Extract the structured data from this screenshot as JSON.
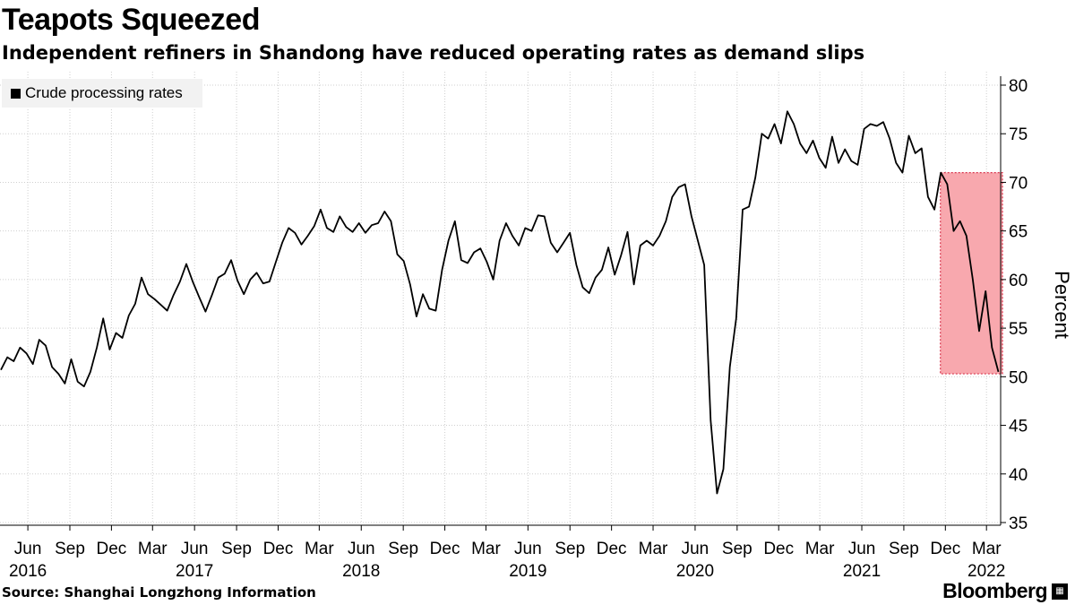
{
  "title": "Teapots Squeezed",
  "subtitle": "Independent refiners in Shandong have reduced operating rates as demand slips",
  "source": "Source: Shanghai Longzhong Information",
  "brand": "Bloomberg",
  "brand_badge": "▦",
  "chart_data": {
    "type": "line",
    "legend_position": "top-left",
    "grid": true,
    "ylabel": "Percent",
    "ylim": [
      35,
      80
    ],
    "yticks": [
      35,
      40,
      45,
      50,
      55,
      60,
      65,
      70,
      75,
      80
    ],
    "xlim": [
      "2016-04",
      "2022-04"
    ],
    "xtick_labels": [
      {
        "label": "Jun",
        "date": "2016-06"
      },
      {
        "label": "Sep",
        "date": "2016-09"
      },
      {
        "label": "Dec",
        "date": "2016-12"
      },
      {
        "label": "Mar",
        "date": "2017-03"
      },
      {
        "label": "Jun",
        "date": "2017-06"
      },
      {
        "label": "Sep",
        "date": "2017-09"
      },
      {
        "label": "Dec",
        "date": "2017-12"
      },
      {
        "label": "Mar",
        "date": "2018-03"
      },
      {
        "label": "Jun",
        "date": "2018-06"
      },
      {
        "label": "Sep",
        "date": "2018-09"
      },
      {
        "label": "Dec",
        "date": "2018-12"
      },
      {
        "label": "Mar",
        "date": "2019-03"
      },
      {
        "label": "Jun",
        "date": "2019-06"
      },
      {
        "label": "Sep",
        "date": "2019-09"
      },
      {
        "label": "Dec",
        "date": "2019-12"
      },
      {
        "label": "Mar",
        "date": "2020-03"
      },
      {
        "label": "Jun",
        "date": "2020-06"
      },
      {
        "label": "Sep",
        "date": "2020-09"
      },
      {
        "label": "Dec",
        "date": "2020-12"
      },
      {
        "label": "Mar",
        "date": "2021-03"
      },
      {
        "label": "Jun",
        "date": "2021-06"
      },
      {
        "label": "Sep",
        "date": "2021-09"
      },
      {
        "label": "Dec",
        "date": "2021-12"
      },
      {
        "label": "Mar",
        "date": "2022-03"
      }
    ],
    "year_labels": [
      {
        "label": "2016",
        "date": "2016-06"
      },
      {
        "label": "2017",
        "date": "2017-06"
      },
      {
        "label": "2018",
        "date": "2018-06"
      },
      {
        "label": "2019",
        "date": "2019-06"
      },
      {
        "label": "2020",
        "date": "2020-06"
      },
      {
        "label": "2021",
        "date": "2021-06"
      },
      {
        "label": "2022",
        "date": "2022-03"
      }
    ],
    "highlight": {
      "x_start": "2021-11-20",
      "x_end": "2022-04-05",
      "y_start": 50.3,
      "y_end": 71.0,
      "color": "#f8a8ae",
      "border": "#d9374f"
    },
    "series": [
      {
        "name": "Crude processing rates",
        "color": "#000000",
        "points": [
          [
            "2016-04-03",
            50.7
          ],
          [
            "2016-04-17",
            52.0
          ],
          [
            "2016-05-01",
            51.6
          ],
          [
            "2016-05-15",
            53.0
          ],
          [
            "2016-05-29",
            52.4
          ],
          [
            "2016-06-12",
            51.3
          ],
          [
            "2016-06-26",
            53.8
          ],
          [
            "2016-07-10",
            53.2
          ],
          [
            "2016-07-24",
            51.0
          ],
          [
            "2016-08-07",
            50.3
          ],
          [
            "2016-08-21",
            49.3
          ],
          [
            "2016-09-04",
            51.8
          ],
          [
            "2016-09-18",
            49.5
          ],
          [
            "2016-10-02",
            49.0
          ],
          [
            "2016-10-16",
            50.5
          ],
          [
            "2016-10-30",
            53.0
          ],
          [
            "2016-11-13",
            56.0
          ],
          [
            "2016-11-27",
            52.8
          ],
          [
            "2016-12-11",
            54.5
          ],
          [
            "2016-12-25",
            54.0
          ],
          [
            "2017-01-08",
            56.3
          ],
          [
            "2017-01-22",
            57.5
          ],
          [
            "2017-02-05",
            60.2
          ],
          [
            "2017-02-19",
            58.5
          ],
          [
            "2017-03-05",
            58.0
          ],
          [
            "2017-03-19",
            57.4
          ],
          [
            "2017-04-02",
            56.8
          ],
          [
            "2017-04-16",
            58.4
          ],
          [
            "2017-04-30",
            59.8
          ],
          [
            "2017-05-14",
            61.6
          ],
          [
            "2017-05-28",
            59.8
          ],
          [
            "2017-06-11",
            58.2
          ],
          [
            "2017-06-25",
            56.7
          ],
          [
            "2017-07-09",
            58.4
          ],
          [
            "2017-07-23",
            60.2
          ],
          [
            "2017-08-06",
            60.6
          ],
          [
            "2017-08-20",
            62.0
          ],
          [
            "2017-09-03",
            59.9
          ],
          [
            "2017-09-17",
            58.5
          ],
          [
            "2017-10-01",
            60.0
          ],
          [
            "2017-10-15",
            60.7
          ],
          [
            "2017-10-29",
            59.6
          ],
          [
            "2017-11-12",
            59.8
          ],
          [
            "2017-11-26",
            61.8
          ],
          [
            "2017-12-10",
            63.8
          ],
          [
            "2017-12-24",
            65.3
          ],
          [
            "2018-01-07",
            64.8
          ],
          [
            "2018-01-21",
            63.6
          ],
          [
            "2018-02-04",
            64.5
          ],
          [
            "2018-02-18",
            65.5
          ],
          [
            "2018-03-04",
            67.2
          ],
          [
            "2018-03-18",
            65.3
          ],
          [
            "2018-04-01",
            64.9
          ],
          [
            "2018-04-15",
            66.5
          ],
          [
            "2018-04-29",
            65.4
          ],
          [
            "2018-05-13",
            64.9
          ],
          [
            "2018-05-27",
            65.8
          ],
          [
            "2018-06-10",
            64.8
          ],
          [
            "2018-06-24",
            65.6
          ],
          [
            "2018-07-08",
            65.8
          ],
          [
            "2018-07-22",
            67.0
          ],
          [
            "2018-08-05",
            66.0
          ],
          [
            "2018-08-19",
            62.6
          ],
          [
            "2018-09-02",
            61.9
          ],
          [
            "2018-09-16",
            59.5
          ],
          [
            "2018-09-30",
            56.2
          ],
          [
            "2018-10-14",
            58.5
          ],
          [
            "2018-10-28",
            57.0
          ],
          [
            "2018-11-11",
            56.8
          ],
          [
            "2018-11-25",
            61.0
          ],
          [
            "2018-12-09",
            64.0
          ],
          [
            "2018-12-23",
            66.0
          ],
          [
            "2019-01-06",
            62.0
          ],
          [
            "2019-01-20",
            61.7
          ],
          [
            "2019-02-03",
            62.8
          ],
          [
            "2019-02-17",
            63.2
          ],
          [
            "2019-03-03",
            61.8
          ],
          [
            "2019-03-17",
            60.0
          ],
          [
            "2019-03-31",
            64.0
          ],
          [
            "2019-04-14",
            65.8
          ],
          [
            "2019-04-28",
            64.5
          ],
          [
            "2019-05-12",
            63.5
          ],
          [
            "2019-05-26",
            65.3
          ],
          [
            "2019-06-09",
            65.0
          ],
          [
            "2019-06-23",
            66.6
          ],
          [
            "2019-07-07",
            66.5
          ],
          [
            "2019-07-21",
            63.8
          ],
          [
            "2019-08-04",
            62.8
          ],
          [
            "2019-08-18",
            63.8
          ],
          [
            "2019-09-01",
            64.8
          ],
          [
            "2019-09-15",
            61.5
          ],
          [
            "2019-09-29",
            59.2
          ],
          [
            "2019-10-13",
            58.6
          ],
          [
            "2019-10-27",
            60.2
          ],
          [
            "2019-11-10",
            61.0
          ],
          [
            "2019-11-24",
            63.3
          ],
          [
            "2019-12-08",
            60.5
          ],
          [
            "2019-12-22",
            62.5
          ],
          [
            "2020-01-05",
            64.9
          ],
          [
            "2020-01-19",
            59.5
          ],
          [
            "2020-02-02",
            63.5
          ],
          [
            "2020-02-16",
            64.0
          ],
          [
            "2020-03-01",
            63.5
          ],
          [
            "2020-03-15",
            64.5
          ],
          [
            "2020-03-29",
            66.0
          ],
          [
            "2020-04-12",
            68.5
          ],
          [
            "2020-04-26",
            69.5
          ],
          [
            "2020-05-10",
            69.8
          ],
          [
            "2020-05-24",
            66.5
          ],
          [
            "2020-06-07",
            64.0
          ],
          [
            "2020-06-21",
            61.5
          ],
          [
            "2020-07-05",
            45.5
          ],
          [
            "2020-07-19",
            38.0
          ],
          [
            "2020-08-02",
            40.5
          ],
          [
            "2020-08-16",
            51.0
          ],
          [
            "2020-08-30",
            56.0
          ],
          [
            "2020-09-13",
            67.2
          ],
          [
            "2020-09-27",
            67.5
          ],
          [
            "2020-10-11",
            70.5
          ],
          [
            "2020-10-25",
            75.0
          ],
          [
            "2020-11-08",
            74.5
          ],
          [
            "2020-11-22",
            76.0
          ],
          [
            "2020-12-06",
            74.0
          ],
          [
            "2020-12-20",
            77.3
          ],
          [
            "2021-01-03",
            76.0
          ],
          [
            "2021-01-17",
            74.0
          ],
          [
            "2021-01-31",
            73.0
          ],
          [
            "2021-02-14",
            74.3
          ],
          [
            "2021-02-28",
            72.5
          ],
          [
            "2021-03-14",
            71.5
          ],
          [
            "2021-03-28",
            74.7
          ],
          [
            "2021-04-11",
            72.0
          ],
          [
            "2021-04-25",
            73.4
          ],
          [
            "2021-05-09",
            72.2
          ],
          [
            "2021-05-23",
            71.8
          ],
          [
            "2021-06-06",
            75.5
          ],
          [
            "2021-06-20",
            76.0
          ],
          [
            "2021-07-04",
            75.8
          ],
          [
            "2021-07-18",
            76.2
          ],
          [
            "2021-08-01",
            74.5
          ],
          [
            "2021-08-15",
            72.0
          ],
          [
            "2021-08-29",
            71.0
          ],
          [
            "2021-09-12",
            74.8
          ],
          [
            "2021-09-26",
            73.0
          ],
          [
            "2021-10-10",
            73.5
          ],
          [
            "2021-10-24",
            68.5
          ],
          [
            "2021-11-07",
            67.2
          ],
          [
            "2021-11-21",
            71.0
          ],
          [
            "2021-12-05",
            69.8
          ],
          [
            "2021-12-19",
            65.0
          ],
          [
            "2022-01-02",
            66.0
          ],
          [
            "2022-01-16",
            64.5
          ],
          [
            "2022-01-30",
            60.0
          ],
          [
            "2022-02-13",
            54.7
          ],
          [
            "2022-02-27",
            58.8
          ],
          [
            "2022-03-13",
            53.0
          ],
          [
            "2022-03-27",
            50.5
          ]
        ]
      }
    ]
  }
}
